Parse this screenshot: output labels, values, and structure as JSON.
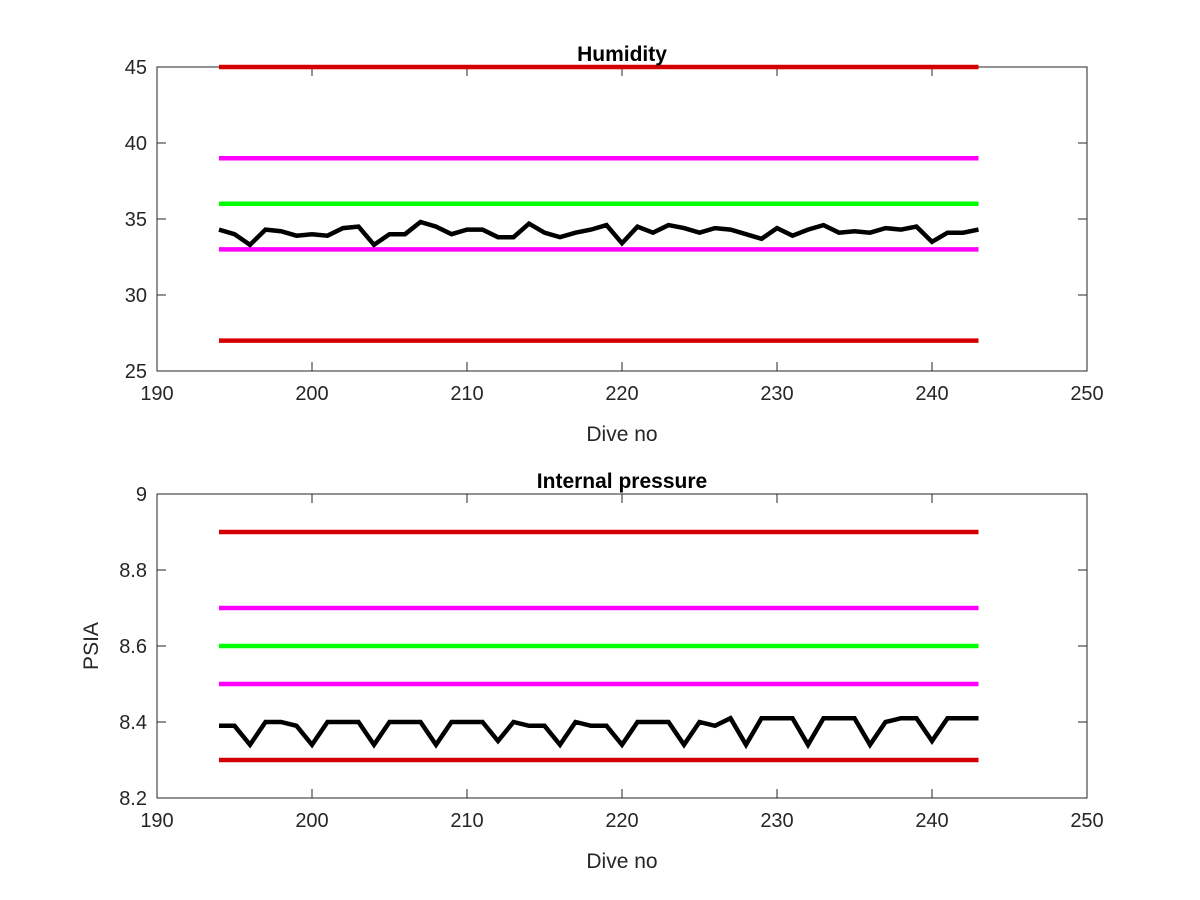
{
  "chart_data": [
    {
      "type": "line",
      "title": "Humidity",
      "xlabel": "Dive no",
      "ylabel": "",
      "xlim": [
        190,
        250
      ],
      "ylim": [
        25,
        45
      ],
      "xticks": [
        190,
        200,
        210,
        220,
        230,
        240,
        250
      ],
      "yticks": [
        25,
        30,
        35,
        40,
        45
      ],
      "grid": false,
      "reference_lines": [
        {
          "y": 45,
          "x": [
            194,
            243
          ],
          "color": "#d40000"
        },
        {
          "y": 39,
          "x": [
            194,
            243
          ],
          "color": "#ff00ff"
        },
        {
          "y": 36,
          "x": [
            194,
            243
          ],
          "color": "#00ff00"
        },
        {
          "y": 33,
          "x": [
            194,
            243
          ],
          "color": "#ff00ff"
        },
        {
          "y": 27,
          "x": [
            194,
            243
          ],
          "color": "#d40000"
        }
      ],
      "series": [
        {
          "color": "#000000",
          "x": [
            194,
            195,
            196,
            197,
            198,
            199,
            200,
            201,
            202,
            203,
            204,
            205,
            206,
            207,
            208,
            209,
            210,
            211,
            212,
            213,
            214,
            215,
            216,
            217,
            218,
            219,
            220,
            221,
            222,
            223,
            224,
            225,
            226,
            227,
            228,
            229,
            230,
            231,
            232,
            233,
            234,
            235,
            236,
            237,
            238,
            239,
            240,
            241,
            242,
            243
          ],
          "y": [
            34.3,
            34.0,
            33.3,
            34.3,
            34.2,
            33.9,
            34.0,
            33.9,
            34.4,
            34.5,
            33.3,
            34.0,
            34.0,
            34.8,
            34.5,
            34.0,
            34.3,
            34.3,
            33.8,
            33.8,
            34.7,
            34.1,
            33.8,
            34.1,
            34.3,
            34.6,
            33.4,
            34.5,
            34.1,
            34.6,
            34.4,
            34.1,
            34.4,
            34.3,
            34.0,
            33.7,
            34.4,
            33.9,
            34.3,
            34.6,
            34.1,
            34.2,
            34.1,
            34.4,
            34.3,
            34.5,
            33.5,
            34.1,
            34.1,
            34.3
          ]
        }
      ]
    },
    {
      "type": "line",
      "title": "Internal pressure",
      "xlabel": "Dive no",
      "ylabel": "PSIA",
      "xlim": [
        190,
        250
      ],
      "ylim": [
        8.2,
        9
      ],
      "xticks": [
        190,
        200,
        210,
        220,
        230,
        240,
        250
      ],
      "yticks": [
        8.2,
        8.4,
        8.6,
        8.8,
        9
      ],
      "grid": false,
      "reference_lines": [
        {
          "y": 8.9,
          "x": [
            194,
            243
          ],
          "color": "#d40000"
        },
        {
          "y": 8.7,
          "x": [
            194,
            243
          ],
          "color": "#ff00ff"
        },
        {
          "y": 8.6,
          "x": [
            194,
            243
          ],
          "color": "#00ff00"
        },
        {
          "y": 8.5,
          "x": [
            194,
            243
          ],
          "color": "#ff00ff"
        },
        {
          "y": 8.3,
          "x": [
            194,
            243
          ],
          "color": "#d40000"
        }
      ],
      "series": [
        {
          "color": "#000000",
          "x": [
            194,
            195,
            196,
            197,
            198,
            199,
            200,
            201,
            202,
            203,
            204,
            205,
            206,
            207,
            208,
            209,
            210,
            211,
            212,
            213,
            214,
            215,
            216,
            217,
            218,
            219,
            220,
            221,
            222,
            223,
            224,
            225,
            226,
            227,
            228,
            229,
            230,
            231,
            232,
            233,
            234,
            235,
            236,
            237,
            238,
            239,
            240,
            241,
            242,
            243
          ],
          "y": [
            8.39,
            8.39,
            8.34,
            8.4,
            8.4,
            8.39,
            8.34,
            8.4,
            8.4,
            8.4,
            8.34,
            8.4,
            8.4,
            8.4,
            8.34,
            8.4,
            8.4,
            8.4,
            8.35,
            8.4,
            8.39,
            8.39,
            8.34,
            8.4,
            8.39,
            8.39,
            8.34,
            8.4,
            8.4,
            8.4,
            8.34,
            8.4,
            8.39,
            8.41,
            8.34,
            8.41,
            8.41,
            8.41,
            8.34,
            8.41,
            8.41,
            8.41,
            8.34,
            8.4,
            8.41,
            8.41,
            8.35,
            8.41,
            8.41,
            8.41
          ]
        }
      ]
    }
  ]
}
